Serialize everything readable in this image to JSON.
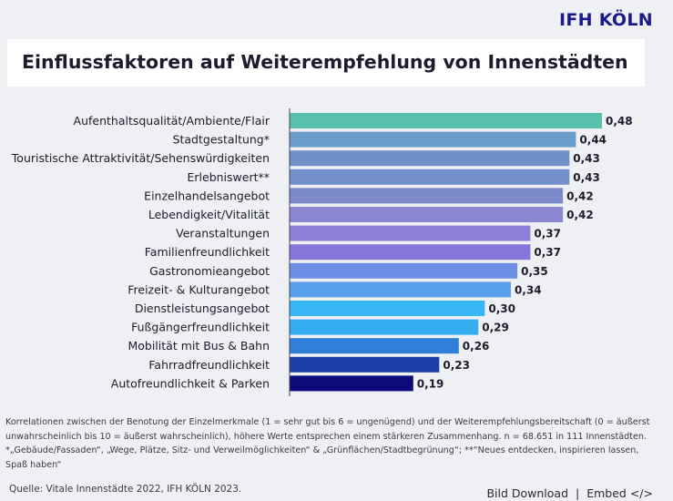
{
  "brand": "IFH KÖLN",
  "notes": {
    "line1": "Korrelationen zwischen der Benotung der Einzelmerkmale (1 = sehr gut bis 6 = ungenügend) und der Weiterempfehlungsbereitschaft (0 = äußerst unwahrscheinlich bis 10 = äußerst wahrscheinlich), höhere Werte entsprechen einem stärkeren Zusammenhang. n = 68.651 in 111 Innenstädten.",
    "line2": "*„Gebäude/Fassaden“, „Wege, Plätze, Sitz- und Verweilmöglichkeiten“ & „Grünflächen/Stadtbegrünung“; **“Neues entdecken, inspirieren lassen, Spaß haben“"
  },
  "source": "Quelle: Vitale Innenstädte 2022, IFH KÖLN 2023.",
  "links": {
    "download": "Bild Download",
    "separator": "|",
    "embed": "Embed </>"
  },
  "chart_data": {
    "type": "bar",
    "orientation": "horizontal",
    "title": "Einflussfaktoren auf Weiterempfehlung von Innenstädten",
    "xlim": [
      0,
      0.48
    ],
    "grid": false,
    "categories": [
      "Aufenthaltsqualität/Ambiente/Flair",
      "Stadtgestaltung*",
      "Touristische Attraktivität/Sehenswürdigkeiten",
      "Erlebniswert**",
      "Einzelhandelsangebot",
      "Lebendigkeit/Vitalität",
      "Veranstaltungen",
      "Familienfreundlichkeit",
      "Gastronomieangebot",
      "Freizeit- & Kulturangebot",
      "Dienstleistungsangebot",
      "Fußgängerfreundlichkeit",
      "Mobilität mit Bus & Bahn",
      "Fahrradfreundlichkeit",
      "Autofreundlichkeit & Parken"
    ],
    "values": [
      0.48,
      0.44,
      0.43,
      0.43,
      0.42,
      0.42,
      0.37,
      0.37,
      0.35,
      0.34,
      0.3,
      0.29,
      0.26,
      0.23,
      0.19
    ],
    "value_labels": [
      "0,48",
      "0,44",
      "0,43",
      "0,43",
      "0,42",
      "0,42",
      "0,37",
      "0,37",
      "0,35",
      "0,34",
      "0,30",
      "0,29",
      "0,26",
      "0,23",
      "0,19"
    ],
    "colors": [
      "#57c0aa",
      "#6a9ccc",
      "#6f8fc8",
      "#7490cc",
      "#7c8acc",
      "#8a86d0",
      "#8e7fd8",
      "#8676dc",
      "#6f8fe6",
      "#5aa0ec",
      "#36b6f4",
      "#33acf0",
      "#2f7fd8",
      "#1d3ea8",
      "#0a0a7a"
    ]
  }
}
